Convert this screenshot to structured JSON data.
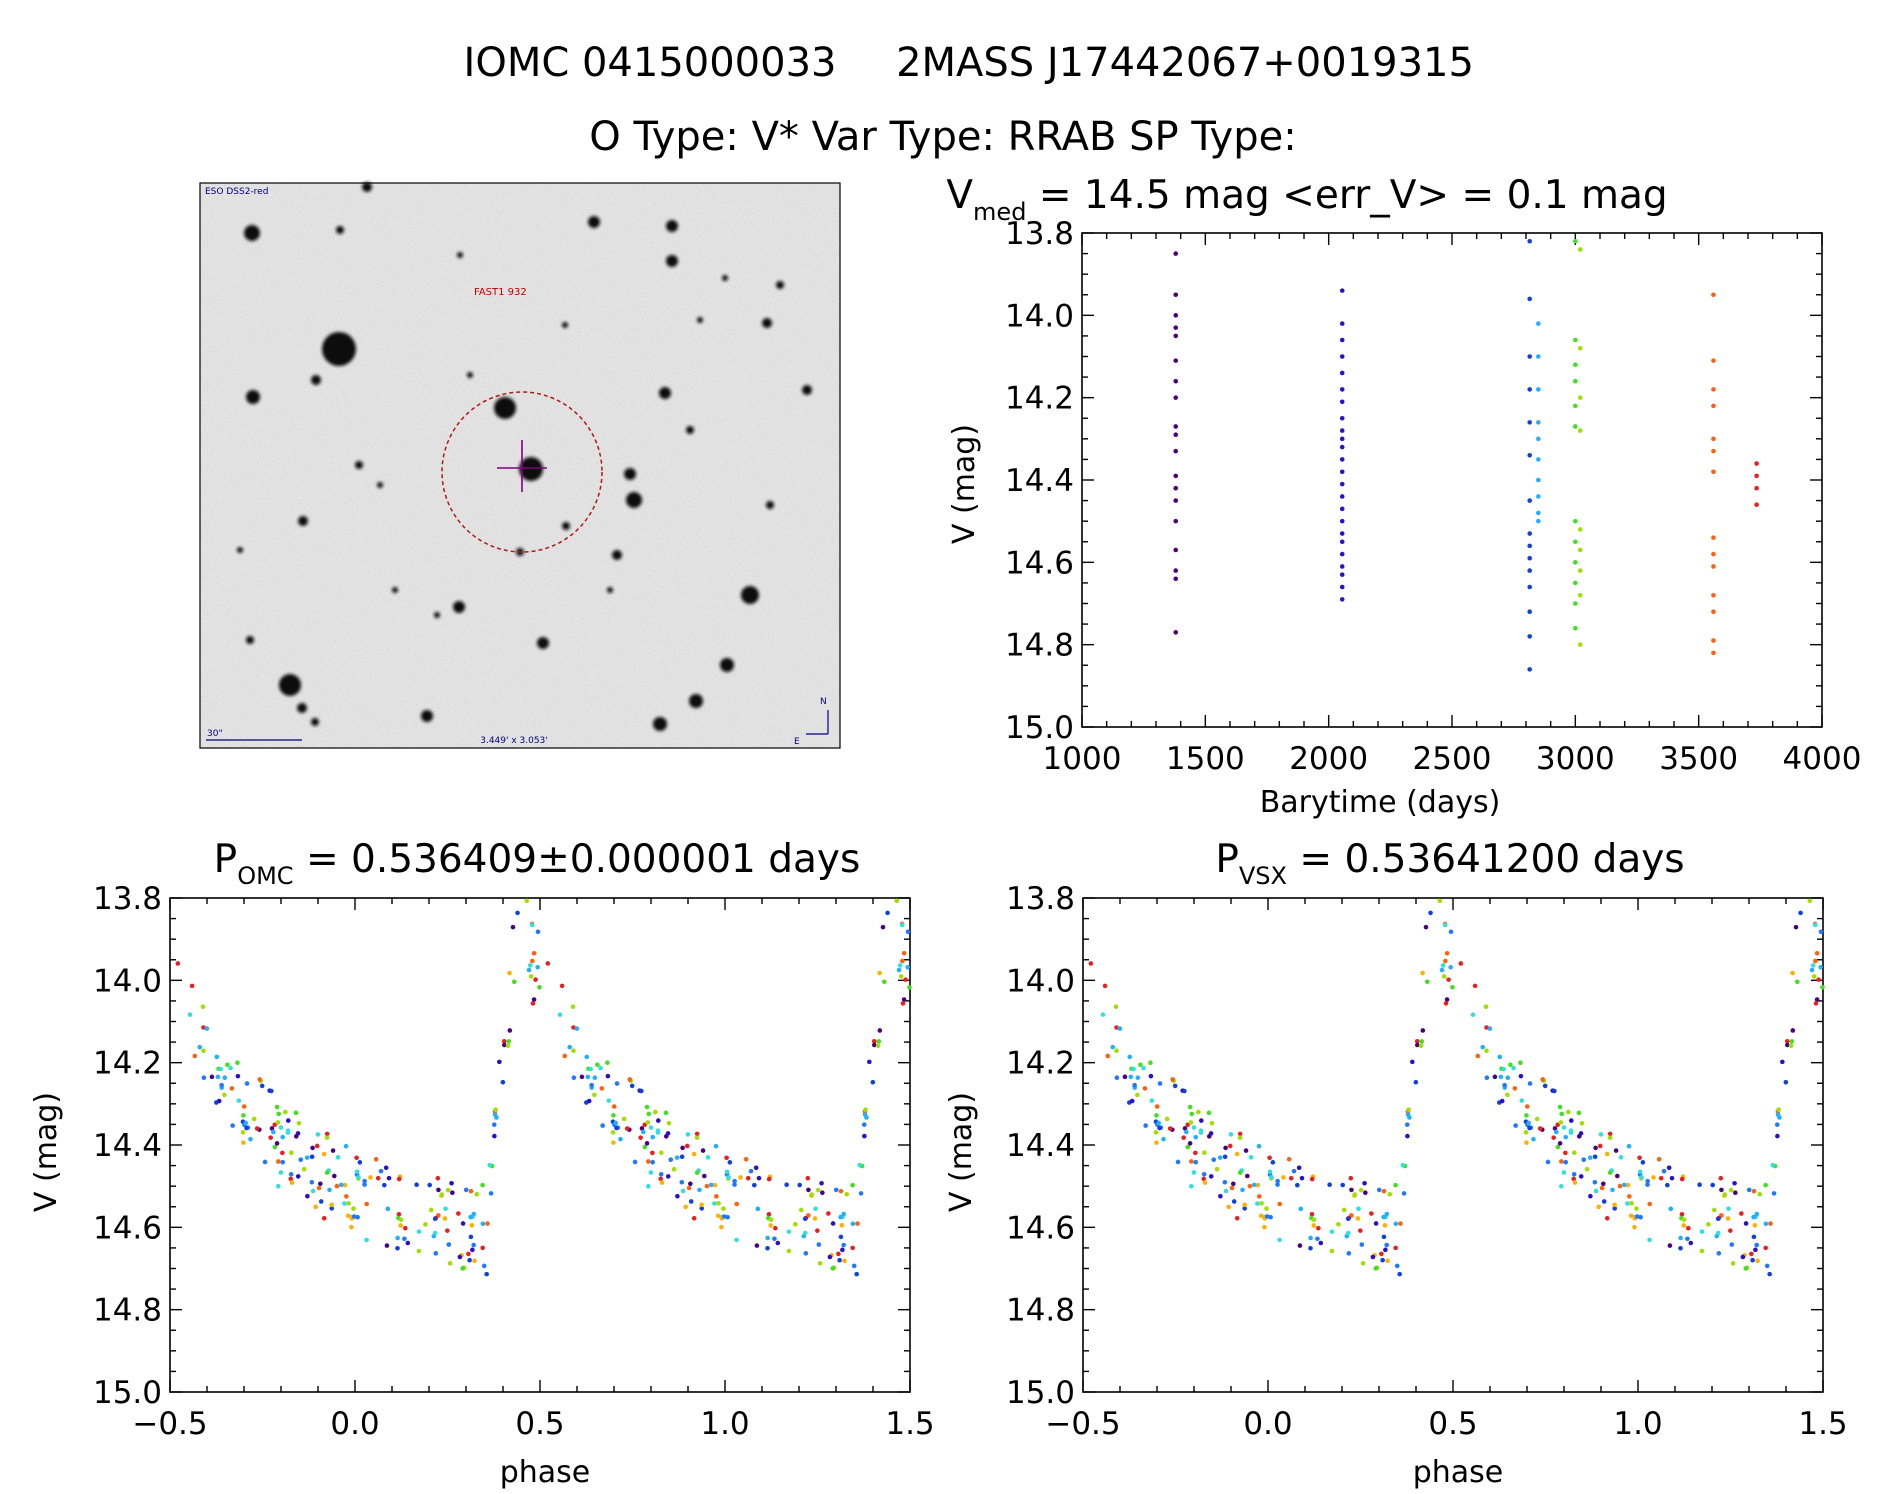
{
  "header": {
    "line1_left": "IOMC 0415000033",
    "line1_right": "2MASS J17442067+0019315",
    "line2": "O Type: V*  Var Type: RRAB  SP Type:"
  },
  "finder": {
    "survey_label": "ESO DSS2-red",
    "target_label": "FAST1 932",
    "scale_label": "30\"",
    "fov_label": "3.449' x 3.053'",
    "north_label": "N",
    "east_label": "E"
  },
  "colors": {
    "jd1380": "#4b0082",
    "jd2055": "#2a10c8",
    "jd2815": "#1040e0",
    "jd2850": "#20b0ff",
    "jd3000": "#40e020",
    "jd3010": "#a0e000",
    "jd3560": "#ff6010",
    "jd3740": "#e82020",
    "finder_circle": "#b01818",
    "finder_cross": "#800080",
    "finder_labels": "#000080",
    "target_label": "#c00000"
  },
  "chart_data": [
    {
      "type": "scatter",
      "id": "lightcurve",
      "title_main": "V",
      "title_sub": "med",
      "title_rest": " = 14.5 mag <err_V> = 0.1 mag",
      "xlabel": "Barytime (days)",
      "ylabel": "V (mag)",
      "xlim": [
        1000,
        4000
      ],
      "ylim": [
        15.0,
        13.8
      ],
      "x_ticks": [
        1000,
        1500,
        2000,
        2500,
        3000,
        3500,
        4000
      ],
      "x_tick_labels": [
        "1000",
        "1500",
        "2000",
        "2500",
        "3000",
        "3500",
        "4000"
      ],
      "y_ticks": [
        13.8,
        14.0,
        14.2,
        14.4,
        14.6,
        14.8,
        15.0
      ],
      "y_tick_labels": [
        "13.8",
        "14.0",
        "14.2",
        "14.4",
        "14.6",
        "14.8",
        "15.0"
      ],
      "groups": [
        {
          "x": 1380,
          "color_key": "jd1380",
          "v": [
            13.85,
            13.95,
            14.0,
            14.03,
            14.05,
            14.11,
            14.16,
            14.2,
            14.27,
            14.29,
            14.33,
            14.39,
            14.42,
            14.45,
            14.5,
            14.57,
            14.62,
            14.64,
            14.77
          ]
        },
        {
          "x": 2055,
          "color_key": "jd2055",
          "v": [
            13.94,
            14.02,
            14.06,
            14.1,
            14.14,
            14.18,
            14.21,
            14.25,
            14.28,
            14.3,
            14.32,
            14.35,
            14.38,
            14.41,
            14.44,
            14.47,
            14.5,
            14.53,
            14.55,
            14.58,
            14.61,
            14.63,
            14.66,
            14.69
          ]
        },
        {
          "x": 2815,
          "color_key": "jd2815",
          "v": [
            13.82,
            13.96,
            14.1,
            14.18,
            14.26,
            14.34,
            14.45,
            14.53,
            14.56,
            14.59,
            14.62,
            14.66,
            14.72,
            14.78,
            14.86
          ]
        },
        {
          "x": 2850,
          "color_key": "jd2850",
          "v": [
            14.02,
            14.1,
            14.18,
            14.26,
            14.3,
            14.35,
            14.4,
            14.44,
            14.48,
            14.5
          ]
        },
        {
          "x": 3000,
          "color_key": "jd3000",
          "v": [
            13.82,
            14.06,
            14.12,
            14.16,
            14.22,
            14.27,
            14.5,
            14.55,
            14.6,
            14.65,
            14.7,
            14.76
          ]
        },
        {
          "x": 3020,
          "color_key": "jd3010",
          "v": [
            13.84,
            14.08,
            14.2,
            14.28,
            14.52,
            14.57,
            14.62,
            14.68,
            14.8
          ]
        },
        {
          "x": 3560,
          "color_key": "jd3560",
          "v": [
            13.95,
            14.11,
            14.18,
            14.22,
            14.3,
            14.33,
            14.38,
            14.54,
            14.58,
            14.61,
            14.68,
            14.72,
            14.79,
            14.82
          ]
        },
        {
          "x": 3735,
          "color_key": "jd3740",
          "v": [
            14.36,
            14.39,
            14.42,
            14.46
          ]
        }
      ]
    },
    {
      "type": "scatter",
      "id": "phase_omc",
      "title_main": "P",
      "title_sub": "OMC",
      "title_rest": " = 0.536409±0.000001 days",
      "xlabel": "phase",
      "ylabel": "V (mag)",
      "xlim": [
        -0.5,
        1.5
      ],
      "ylim": [
        15.0,
        13.8
      ],
      "x_ticks": [
        -0.5,
        0.0,
        0.5,
        1.0,
        1.5
      ],
      "x_tick_labels": [
        "−0.5",
        "0.0",
        "0.5",
        "1.0",
        "1.5"
      ],
      "y_ticks": [
        13.8,
        14.0,
        14.2,
        14.4,
        14.6,
        14.8,
        15.0
      ],
      "y_tick_labels": [
        "13.8",
        "14.0",
        "14.2",
        "14.4",
        "14.6",
        "14.8",
        "15.0"
      ]
    },
    {
      "type": "scatter",
      "id": "phase_vsx",
      "title_main": "P",
      "title_sub": "VSX",
      "title_rest": " = 0.53641200 days",
      "xlabel": "phase",
      "ylabel": "V (mag)",
      "xlim": [
        -0.5,
        1.5
      ],
      "ylim": [
        15.0,
        13.8
      ],
      "x_ticks": [
        -0.5,
        0.0,
        0.5,
        1.0,
        1.5
      ],
      "x_tick_labels": [
        "−0.5",
        "0.0",
        "0.5",
        "1.0",
        "1.5"
      ],
      "y_ticks": [
        13.8,
        14.0,
        14.2,
        14.4,
        14.6,
        14.8,
        15.0
      ],
      "y_tick_labels": [
        "13.8",
        "14.0",
        "14.2",
        "14.4",
        "14.6",
        "14.8",
        "15.0"
      ]
    }
  ]
}
